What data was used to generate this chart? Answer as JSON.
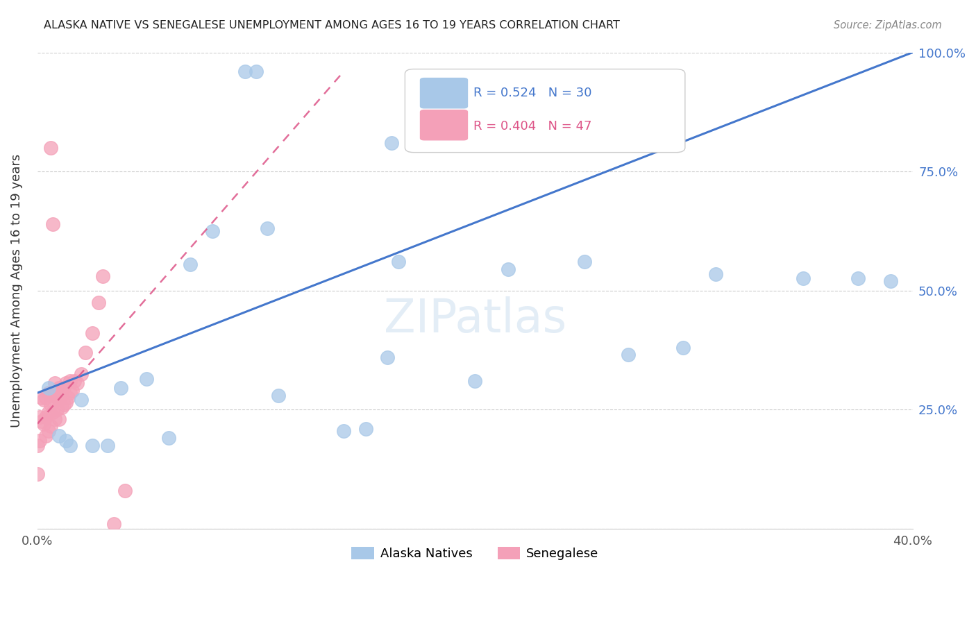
{
  "title": "ALASKA NATIVE VS SENEGALESE UNEMPLOYMENT AMONG AGES 16 TO 19 YEARS CORRELATION CHART",
  "source": "Source: ZipAtlas.com",
  "ylabel": "Unemployment Among Ages 16 to 19 years",
  "xlim": [
    0.0,
    0.4
  ],
  "ylim": [
    0.0,
    1.0
  ],
  "legend_label1": "Alaska Natives",
  "legend_label2": "Senegalese",
  "R1": 0.524,
  "N1": 30,
  "R2": 0.404,
  "N2": 47,
  "blue_dot_color": "#a8c8e8",
  "pink_dot_color": "#f4a0b8",
  "blue_line_color": "#4477cc",
  "pink_line_color": "#dd5588",
  "alaska_x": [
    0.005,
    0.01,
    0.013,
    0.015,
    0.02,
    0.025,
    0.032,
    0.038,
    0.05,
    0.06,
    0.07,
    0.08,
    0.095,
    0.1,
    0.105,
    0.11,
    0.14,
    0.15,
    0.16,
    0.162,
    0.165,
    0.2,
    0.215,
    0.25,
    0.27,
    0.295,
    0.31,
    0.35,
    0.375,
    0.39
  ],
  "alaska_y": [
    0.295,
    0.195,
    0.185,
    0.175,
    0.27,
    0.175,
    0.175,
    0.295,
    0.315,
    0.19,
    0.555,
    0.625,
    0.96,
    0.96,
    0.63,
    0.28,
    0.205,
    0.21,
    0.36,
    0.81,
    0.56,
    0.31,
    0.545,
    0.56,
    0.365,
    0.38,
    0.535,
    0.525,
    0.525,
    0.52
  ],
  "senegal_x": [
    0.0,
    0.0,
    0.001,
    0.001,
    0.002,
    0.002,
    0.003,
    0.003,
    0.004,
    0.004,
    0.004,
    0.005,
    0.005,
    0.005,
    0.006,
    0.006,
    0.006,
    0.007,
    0.007,
    0.007,
    0.008,
    0.008,
    0.008,
    0.009,
    0.009,
    0.01,
    0.01,
    0.01,
    0.011,
    0.011,
    0.012,
    0.012,
    0.013,
    0.013,
    0.014,
    0.015,
    0.015,
    0.016,
    0.017,
    0.018,
    0.02,
    0.022,
    0.025,
    0.028,
    0.03,
    0.035,
    0.04
  ],
  "senegal_y": [
    0.115,
    0.175,
    0.185,
    0.235,
    0.225,
    0.275,
    0.22,
    0.27,
    0.195,
    0.235,
    0.275,
    0.205,
    0.245,
    0.285,
    0.215,
    0.26,
    0.8,
    0.245,
    0.28,
    0.64,
    0.23,
    0.27,
    0.305,
    0.25,
    0.285,
    0.23,
    0.27,
    0.295,
    0.255,
    0.29,
    0.26,
    0.295,
    0.265,
    0.305,
    0.275,
    0.285,
    0.31,
    0.29,
    0.31,
    0.305,
    0.325,
    0.37,
    0.41,
    0.475,
    0.53,
    0.01,
    0.08
  ],
  "blue_line_x": [
    0.0,
    0.4
  ],
  "blue_line_y": [
    0.285,
    1.0
  ],
  "pink_line_x": [
    0.0,
    0.14
  ],
  "pink_line_y": [
    0.22,
    0.96
  ]
}
